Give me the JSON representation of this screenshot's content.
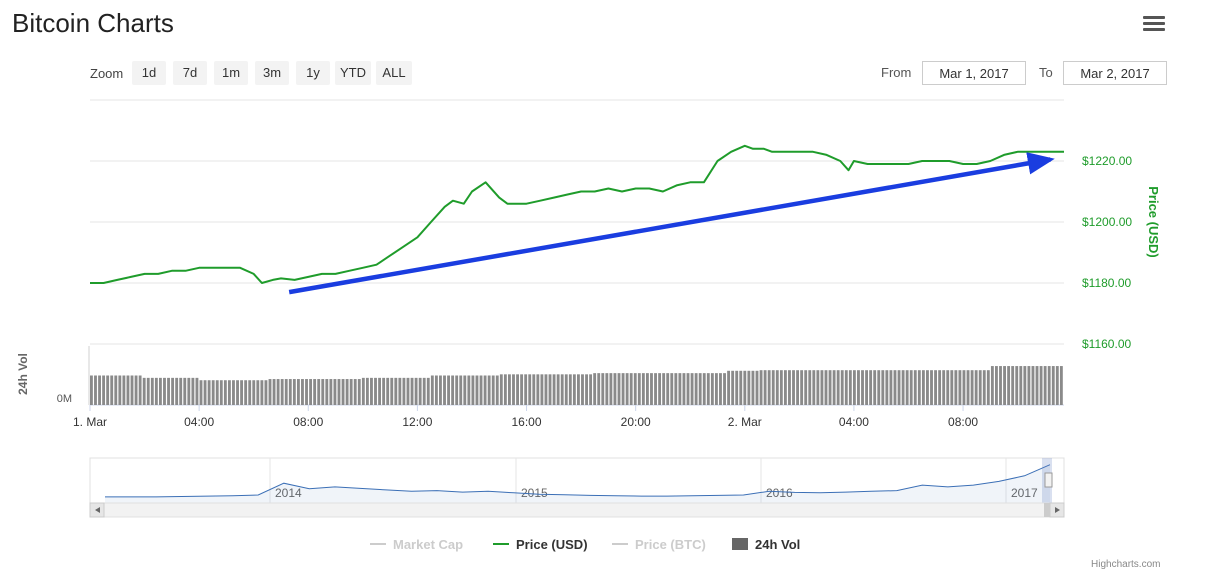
{
  "header": {
    "title": "Bitcoin Charts",
    "menu_icon": "hamburger-menu-icon"
  },
  "range_selector": {
    "zoom_label": "Zoom",
    "buttons": [
      "1d",
      "7d",
      "1m",
      "3m",
      "1y",
      "YTD",
      "ALL"
    ],
    "from_label": "From",
    "from_value": "Mar 1, 2017",
    "to_label": "To",
    "to_value": "Mar 2, 2017"
  },
  "credits": "Highcharts.com",
  "chart_data": {
    "type": "line",
    "price_series": {
      "name": "Price (USD)",
      "color": "#1f9c2b",
      "x_hours": [
        0,
        0.5,
        1,
        1.5,
        2,
        2.5,
        3,
        3.5,
        4,
        4.5,
        5,
        5.5,
        6,
        6.3,
        6.7,
        7,
        7.5,
        8,
        8.5,
        9,
        9.5,
        10,
        10.5,
        11,
        11.5,
        12,
        12.5,
        13,
        13.3,
        13.7,
        14,
        14.5,
        15,
        15.3,
        15.7,
        16,
        16.5,
        17,
        17.5,
        18,
        18.5,
        19,
        19.5,
        20,
        20.5,
        21,
        21.5,
        22,
        22.5,
        23,
        23.5,
        24,
        24.3,
        24.7,
        25,
        25.5,
        26,
        26.5,
        27,
        27.5,
        27.8,
        28,
        28.5,
        29,
        29.5,
        30,
        30.5,
        31,
        31.5,
        32,
        32.5,
        33,
        33.5,
        34,
        34.5,
        35,
        35.5,
        35.7
      ],
      "y_values": [
        1180,
        1180,
        1181,
        1182,
        1183,
        1183,
        1184,
        1184,
        1185,
        1185,
        1185,
        1185,
        1183,
        1180,
        1181,
        1181.5,
        1181,
        1182,
        1183,
        1183,
        1184,
        1185,
        1186,
        1189,
        1192,
        1195,
        1200,
        1205,
        1207,
        1206,
        1210,
        1213,
        1208,
        1206,
        1206,
        1206,
        1207,
        1208,
        1209,
        1210,
        1210,
        1211,
        1210,
        1211,
        1211,
        1210,
        1212,
        1213,
        1213,
        1220,
        1223,
        1225,
        1224,
        1224,
        1223,
        1223,
        1223,
        1223,
        1222,
        1220,
        1217,
        1220,
        1219,
        1219,
        1219,
        1219,
        1220,
        1220,
        1220,
        1219,
        1219,
        1220,
        1222,
        1223,
        1223,
        1223,
        1223,
        1223
      ]
    },
    "price_axis": {
      "title": "Price (USD)",
      "ticks": [
        1160,
        1180,
        1200,
        1220
      ],
      "tick_labels": [
        "$1160.00",
        "$1180.00",
        "$1200.00",
        "$1220.00"
      ],
      "range": [
        1160,
        1240
      ],
      "position": "right"
    },
    "volume_series": {
      "name": "24h Vol",
      "color": "#8a8a8a",
      "segments": [
        {
          "from_hour": 0,
          "to_hour": 2,
          "level": 0.5
        },
        {
          "from_hour": 2,
          "to_hour": 4,
          "level": 0.46
        },
        {
          "from_hour": 4,
          "to_hour": 6.5,
          "level": 0.42
        },
        {
          "from_hour": 6.5,
          "to_hour": 10,
          "level": 0.44
        },
        {
          "from_hour": 10,
          "to_hour": 12.5,
          "level": 0.46
        },
        {
          "from_hour": 12.5,
          "to_hour": 15,
          "level": 0.5
        },
        {
          "from_hour": 15,
          "to_hour": 18.5,
          "level": 0.52
        },
        {
          "from_hour": 18.5,
          "to_hour": 23.3,
          "level": 0.54
        },
        {
          "from_hour": 23.3,
          "to_hour": 24.5,
          "level": 0.58
        },
        {
          "from_hour": 24.5,
          "to_hour": 33,
          "level": 0.59
        },
        {
          "from_hour": 33,
          "to_hour": 35.7,
          "level": 0.66
        }
      ]
    },
    "volume_axis": {
      "title": "24h Vol",
      "tick_labels": [
        "0M"
      ]
    },
    "x_axis": {
      "tick_hours": [
        0,
        4,
        8,
        12,
        16,
        20,
        24,
        28,
        32
      ],
      "tick_labels": [
        "1. Mar",
        "04:00",
        "08:00",
        "12:00",
        "16:00",
        "20:00",
        "2. Mar",
        "04:00",
        "08:00"
      ],
      "range_hours": [
        0,
        35.7
      ]
    },
    "trend_arrow": {
      "color": "#1a3de0",
      "from": {
        "hour": 7.3,
        "price": 1177
      },
      "to": {
        "hour": 35.2,
        "price": 1220.5
      }
    },
    "navigator": {
      "color": "#3b6fb6",
      "year_labels": [
        "2014",
        "2015",
        "2016",
        "2017"
      ],
      "profile": [
        0.03,
        0.03,
        0.03,
        0.04,
        0.05,
        0.06,
        0.08,
        0.4,
        0.25,
        0.3,
        0.26,
        0.22,
        0.18,
        0.2,
        0.16,
        0.18,
        0.14,
        0.1,
        0.09,
        0.07,
        0.06,
        0.05,
        0.05,
        0.06,
        0.07,
        0.08,
        0.18,
        0.15,
        0.14,
        0.16,
        0.18,
        0.2,
        0.35,
        0.3,
        0.35,
        0.45,
        0.6,
        0.9
      ]
    },
    "legend": {
      "position": "bottom-center",
      "items": [
        {
          "label": "Market Cap",
          "active": false,
          "marker": "line"
        },
        {
          "label": "Price (USD)",
          "active": true,
          "marker": "line",
          "color": "#1f9c2b"
        },
        {
          "label": "Price (BTC)",
          "active": false,
          "marker": "line"
        },
        {
          "label": "24h Vol",
          "active": true,
          "marker": "square",
          "color": "#666666"
        }
      ]
    }
  }
}
